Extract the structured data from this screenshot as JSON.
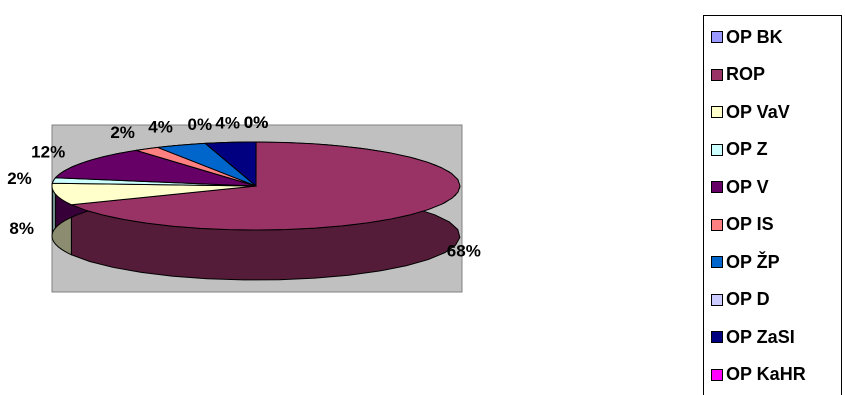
{
  "chart_data": {
    "type": "pie",
    "three_d": true,
    "categories": [
      "OP BK",
      "ROP",
      "OP VaV",
      "OP Z",
      "OP V",
      "OP IS",
      "OP ŽP",
      "OP D",
      "OP ZaSI",
      "OP KaHR"
    ],
    "values": [
      0,
      68,
      8,
      2,
      12,
      2,
      4,
      0,
      4,
      0
    ],
    "labels": [
      "0%",
      "68%",
      "8%",
      "2%",
      "12%",
      "2%",
      "4%",
      "0%",
      "4%",
      "0%"
    ],
    "colors": [
      "#9999ff",
      "#993366",
      "#ffffcc",
      "#ccffff",
      "#660066",
      "#ff8080",
      "#0066cc",
      "#ccccff",
      "#000080",
      "#ff00ff"
    ],
    "legend_position": "right",
    "plot_area_background": "#c0c0c0"
  },
  "legend": {
    "items": [
      {
        "label": "OP BK",
        "color": "#9999ff"
      },
      {
        "label": "ROP",
        "color": "#993366"
      },
      {
        "label": "OP VaV",
        "color": "#ffffcc"
      },
      {
        "label": "OP Z",
        "color": "#ccffff"
      },
      {
        "label": "OP V",
        "color": "#660066"
      },
      {
        "label": "OP IS",
        "color": "#ff8080"
      },
      {
        "label": "OP ŽP",
        "color": "#0066cc"
      },
      {
        "label": "OP D",
        "color": "#ccccff"
      },
      {
        "label": "OP ZaSI",
        "color": "#000080"
      },
      {
        "label": "OP KaHR",
        "color": "#ff00ff"
      }
    ]
  }
}
